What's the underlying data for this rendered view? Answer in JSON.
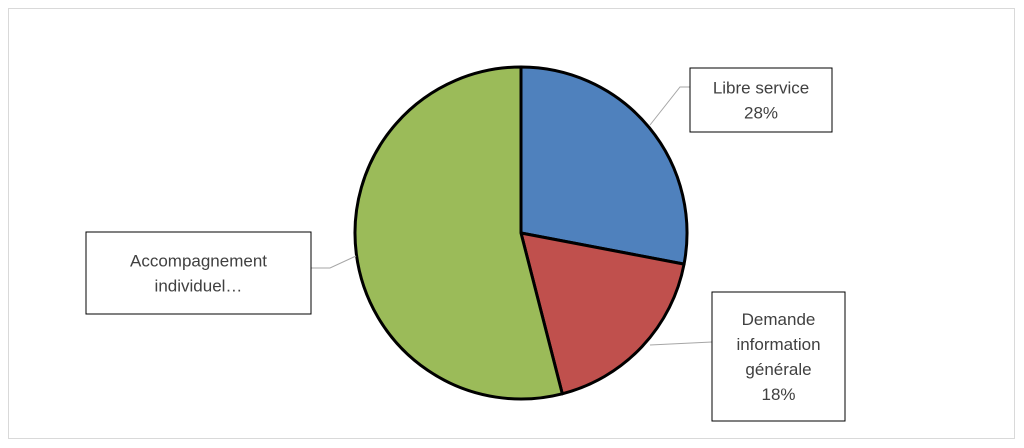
{
  "chart_data": {
    "type": "pie",
    "title": "",
    "slices": [
      {
        "label": "Libre service",
        "value_label": "28%",
        "value": 28,
        "color": "#4f81bd"
      },
      {
        "label": "Demande information générale",
        "value_label": "18%",
        "value": 18,
        "color": "#c0504d"
      },
      {
        "label": "Accompagnement individuel…",
        "value_label": "",
        "value": 54,
        "color": "#9bbb59"
      }
    ],
    "label_lines": [
      [
        "Libre service",
        "28%"
      ],
      [
        "Demande",
        "information",
        "générale",
        "18%"
      ],
      [
        "Accompagnement",
        "individuel…"
      ]
    ]
  }
}
